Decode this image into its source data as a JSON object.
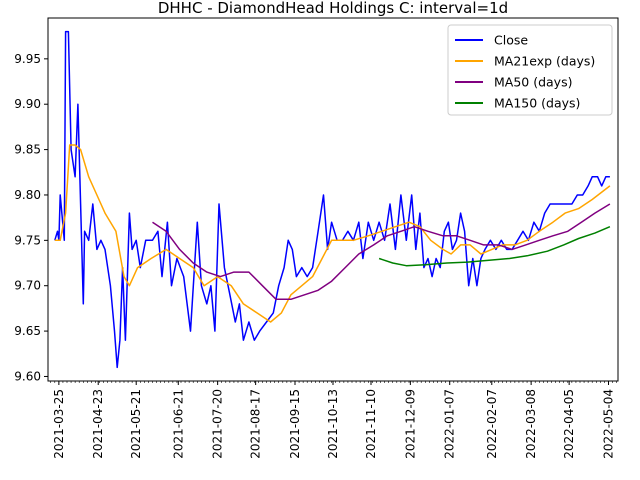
{
  "chart_data": {
    "type": "line",
    "title": "DHHC - DiamondHead Holdings C: interval=1d",
    "xlabel": "",
    "ylabel": "",
    "xlim": [
      "2021-03-17",
      "2022-05-11"
    ],
    "ylim": [
      9.595,
      9.995
    ],
    "yticks": [
      9.6,
      9.65,
      9.7,
      9.75,
      9.8,
      9.85,
      9.9,
      9.95
    ],
    "xticks": [
      "2021-03-25",
      "2021-04-23",
      "2021-05-21",
      "2021-06-21",
      "2021-07-20",
      "2021-08-17",
      "2021-09-15",
      "2021-10-13",
      "2021-11-10",
      "2021-12-09",
      "2022-01-07",
      "2022-02-07",
      "2022-03-08",
      "2022-04-05",
      "2022-05-04"
    ],
    "grid": false,
    "legend": "top-right",
    "series": [
      {
        "name": "Close",
        "color": "#0000ff",
        "points": [
          [
            "2021-03-22",
            9.75
          ],
          [
            "2021-03-24",
            9.76
          ],
          [
            "2021-03-25",
            9.75
          ],
          [
            "2021-03-26",
            9.8
          ],
          [
            "2021-03-29",
            9.75
          ],
          [
            "2021-03-30",
            9.98
          ],
          [
            "2021-04-01",
            9.98
          ],
          [
            "2021-04-03",
            9.85
          ],
          [
            "2021-04-06",
            9.82
          ],
          [
            "2021-04-08",
            9.9
          ],
          [
            "2021-04-10",
            9.79
          ],
          [
            "2021-04-12",
            9.68
          ],
          [
            "2021-04-13",
            9.76
          ],
          [
            "2021-04-16",
            9.75
          ],
          [
            "2021-04-19",
            9.79
          ],
          [
            "2021-04-22",
            9.74
          ],
          [
            "2021-04-25",
            9.75
          ],
          [
            "2021-04-28",
            9.74
          ],
          [
            "2021-05-02",
            9.7
          ],
          [
            "2021-05-05",
            9.65
          ],
          [
            "2021-05-07",
            9.61
          ],
          [
            "2021-05-09",
            9.64
          ],
          [
            "2021-05-11",
            9.72
          ],
          [
            "2021-05-13",
            9.64
          ],
          [
            "2021-05-16",
            9.78
          ],
          [
            "2021-05-18",
            9.74
          ],
          [
            "2021-05-21",
            9.75
          ],
          [
            "2021-05-24",
            9.72
          ],
          [
            "2021-05-28",
            9.75
          ],
          [
            "2021-06-02",
            9.75
          ],
          [
            "2021-06-06",
            9.76
          ],
          [
            "2021-06-09",
            9.71
          ],
          [
            "2021-06-13",
            9.77
          ],
          [
            "2021-06-16",
            9.7
          ],
          [
            "2021-06-20",
            9.73
          ],
          [
            "2021-06-25",
            9.71
          ],
          [
            "2021-06-30",
            9.65
          ],
          [
            "2021-07-05",
            9.77
          ],
          [
            "2021-07-08",
            9.7
          ],
          [
            "2021-07-12",
            9.68
          ],
          [
            "2021-07-15",
            9.7
          ],
          [
            "2021-07-18",
            9.65
          ],
          [
            "2021-07-21",
            9.79
          ],
          [
            "2021-07-25",
            9.72
          ],
          [
            "2021-07-29",
            9.69
          ],
          [
            "2021-08-02",
            9.66
          ],
          [
            "2021-08-05",
            9.68
          ],
          [
            "2021-08-08",
            9.64
          ],
          [
            "2021-08-12",
            9.66
          ],
          [
            "2021-08-16",
            9.64
          ],
          [
            "2021-08-20",
            9.65
          ],
          [
            "2021-08-25",
            9.66
          ],
          [
            "2021-08-30",
            9.67
          ],
          [
            "2021-09-03",
            9.7
          ],
          [
            "2021-09-07",
            9.72
          ],
          [
            "2021-09-10",
            9.75
          ],
          [
            "2021-09-13",
            9.74
          ],
          [
            "2021-09-16",
            9.71
          ],
          [
            "2021-09-20",
            9.72
          ],
          [
            "2021-09-24",
            9.71
          ],
          [
            "2021-09-28",
            9.72
          ],
          [
            "2021-10-02",
            9.76
          ],
          [
            "2021-10-06",
            9.8
          ],
          [
            "2021-10-09",
            9.74
          ],
          [
            "2021-10-12",
            9.77
          ],
          [
            "2021-10-16",
            9.75
          ],
          [
            "2021-10-20",
            9.75
          ],
          [
            "2021-10-24",
            9.76
          ],
          [
            "2021-10-28",
            9.75
          ],
          [
            "2021-11-01",
            9.77
          ],
          [
            "2021-11-04",
            9.73
          ],
          [
            "2021-11-08",
            9.77
          ],
          [
            "2021-11-12",
            9.75
          ],
          [
            "2021-11-16",
            9.77
          ],
          [
            "2021-11-20",
            9.75
          ],
          [
            "2021-11-24",
            9.79
          ],
          [
            "2021-11-28",
            9.74
          ],
          [
            "2021-12-02",
            9.8
          ],
          [
            "2021-12-06",
            9.75
          ],
          [
            "2021-12-10",
            9.8
          ],
          [
            "2021-12-13",
            9.74
          ],
          [
            "2021-12-16",
            9.78
          ],
          [
            "2021-12-19",
            9.72
          ],
          [
            "2021-12-22",
            9.73
          ],
          [
            "2021-12-25",
            9.71
          ],
          [
            "2021-12-28",
            9.73
          ],
          [
            "2021-12-31",
            9.72
          ],
          [
            "2022-01-03",
            9.76
          ],
          [
            "2022-01-06",
            9.77
          ],
          [
            "2022-01-09",
            9.74
          ],
          [
            "2022-01-12",
            9.75
          ],
          [
            "2022-01-15",
            9.78
          ],
          [
            "2022-01-18",
            9.76
          ],
          [
            "2022-01-21",
            9.7
          ],
          [
            "2022-01-24",
            9.73
          ],
          [
            "2022-01-27",
            9.7
          ],
          [
            "2022-01-30",
            9.73
          ],
          [
            "2022-02-02",
            9.74
          ],
          [
            "2022-02-06",
            9.75
          ],
          [
            "2022-02-10",
            9.74
          ],
          [
            "2022-02-14",
            9.75
          ],
          [
            "2022-02-18",
            9.74
          ],
          [
            "2022-02-22",
            9.74
          ],
          [
            "2022-02-26",
            9.75
          ],
          [
            "2022-03-02",
            9.76
          ],
          [
            "2022-03-06",
            9.75
          ],
          [
            "2022-03-10",
            9.77
          ],
          [
            "2022-03-14",
            9.76
          ],
          [
            "2022-03-18",
            9.78
          ],
          [
            "2022-03-22",
            9.79
          ],
          [
            "2022-03-26",
            9.79
          ],
          [
            "2022-03-30",
            9.79
          ],
          [
            "2022-04-03",
            9.79
          ],
          [
            "2022-04-07",
            9.79
          ],
          [
            "2022-04-11",
            9.8
          ],
          [
            "2022-04-15",
            9.8
          ],
          [
            "2022-04-19",
            9.81
          ],
          [
            "2022-04-22",
            9.82
          ],
          [
            "2022-04-26",
            9.82
          ],
          [
            "2022-04-29",
            9.81
          ],
          [
            "2022-05-02",
            9.82
          ],
          [
            "2022-05-05",
            9.82
          ]
        ]
      },
      {
        "name": "MA21exp (days)",
        "color": "#ffa500",
        "points": [
          [
            "2021-03-22",
            9.75
          ],
          [
            "2021-03-26",
            9.75
          ],
          [
            "2021-03-30",
            9.78
          ],
          [
            "2021-04-02",
            9.855
          ],
          [
            "2021-04-06",
            9.855
          ],
          [
            "2021-04-10",
            9.85
          ],
          [
            "2021-04-16",
            9.82
          ],
          [
            "2021-04-22",
            9.8
          ],
          [
            "2021-04-28",
            9.78
          ],
          [
            "2021-05-06",
            9.76
          ],
          [
            "2021-05-12",
            9.71
          ],
          [
            "2021-05-16",
            9.7
          ],
          [
            "2021-05-22",
            9.72
          ],
          [
            "2021-06-01",
            9.73
          ],
          [
            "2021-06-12",
            9.74
          ],
          [
            "2021-06-22",
            9.73
          ],
          [
            "2021-07-02",
            9.72
          ],
          [
            "2021-07-10",
            9.7
          ],
          [
            "2021-07-20",
            9.71
          ],
          [
            "2021-07-30",
            9.7
          ],
          [
            "2021-08-08",
            9.68
          ],
          [
            "2021-08-18",
            9.67
          ],
          [
            "2021-08-28",
            9.66
          ],
          [
            "2021-09-05",
            9.67
          ],
          [
            "2021-09-12",
            9.69
          ],
          [
            "2021-09-20",
            9.7
          ],
          [
            "2021-09-28",
            9.71
          ],
          [
            "2021-10-05",
            9.73
          ],
          [
            "2021-10-12",
            9.75
          ],
          [
            "2021-10-20",
            9.75
          ],
          [
            "2021-10-28",
            9.75
          ],
          [
            "2021-11-08",
            9.755
          ],
          [
            "2021-11-18",
            9.76
          ],
          [
            "2021-11-28",
            9.765
          ],
          [
            "2021-12-08",
            9.77
          ],
          [
            "2021-12-16",
            9.765
          ],
          [
            "2021-12-24",
            9.75
          ],
          [
            "2022-01-02",
            9.74
          ],
          [
            "2022-01-08",
            9.735
          ],
          [
            "2022-01-15",
            9.745
          ],
          [
            "2022-01-22",
            9.745
          ],
          [
            "2022-01-30",
            9.735
          ],
          [
            "2022-02-07",
            9.74
          ],
          [
            "2022-02-15",
            9.745
          ],
          [
            "2022-02-24",
            9.745
          ],
          [
            "2022-03-05",
            9.75
          ],
          [
            "2022-03-14",
            9.76
          ],
          [
            "2022-03-24",
            9.77
          ],
          [
            "2022-04-02",
            9.78
          ],
          [
            "2022-04-12",
            9.785
          ],
          [
            "2022-04-22",
            9.795
          ],
          [
            "2022-05-05",
            9.81
          ]
        ]
      },
      {
        "name": "MA50 (days)",
        "color": "#800080",
        "points": [
          [
            "2021-06-02",
            9.77
          ],
          [
            "2021-06-12",
            9.76
          ],
          [
            "2021-06-22",
            9.74
          ],
          [
            "2021-07-02",
            9.725
          ],
          [
            "2021-07-12",
            9.715
          ],
          [
            "2021-07-22",
            9.71
          ],
          [
            "2021-08-01",
            9.715
          ],
          [
            "2021-08-12",
            9.715
          ],
          [
            "2021-08-22",
            9.7
          ],
          [
            "2021-09-01",
            9.685
          ],
          [
            "2021-09-12",
            9.685
          ],
          [
            "2021-09-22",
            9.69
          ],
          [
            "2021-10-02",
            9.695
          ],
          [
            "2021-10-12",
            9.705
          ],
          [
            "2021-10-22",
            9.72
          ],
          [
            "2021-11-01",
            9.735
          ],
          [
            "2021-11-12",
            9.745
          ],
          [
            "2021-11-22",
            9.755
          ],
          [
            "2021-12-02",
            9.76
          ],
          [
            "2021-12-12",
            9.765
          ],
          [
            "2021-12-22",
            9.76
          ],
          [
            "2022-01-02",
            9.755
          ],
          [
            "2022-01-12",
            9.755
          ],
          [
            "2022-01-22",
            9.75
          ],
          [
            "2022-02-01",
            9.745
          ],
          [
            "2022-02-12",
            9.745
          ],
          [
            "2022-02-22",
            9.74
          ],
          [
            "2022-03-04",
            9.745
          ],
          [
            "2022-03-14",
            9.75
          ],
          [
            "2022-03-24",
            9.755
          ],
          [
            "2022-04-04",
            9.76
          ],
          [
            "2022-04-14",
            9.77
          ],
          [
            "2022-04-24",
            9.78
          ],
          [
            "2022-05-05",
            9.79
          ]
        ]
      },
      {
        "name": "MA150 (days)",
        "color": "#008000",
        "points": [
          [
            "2021-11-16",
            9.73
          ],
          [
            "2021-11-26",
            9.725
          ],
          [
            "2021-12-06",
            9.722
          ],
          [
            "2021-12-20",
            9.723
          ],
          [
            "2022-01-05",
            9.725
          ],
          [
            "2022-01-20",
            9.726
          ],
          [
            "2022-02-05",
            9.728
          ],
          [
            "2022-02-20",
            9.73
          ],
          [
            "2022-03-05",
            9.733
          ],
          [
            "2022-03-20",
            9.738
          ],
          [
            "2022-04-01",
            9.745
          ],
          [
            "2022-04-12",
            9.752
          ],
          [
            "2022-04-24",
            9.758
          ],
          [
            "2022-05-05",
            9.765
          ]
        ]
      }
    ]
  }
}
